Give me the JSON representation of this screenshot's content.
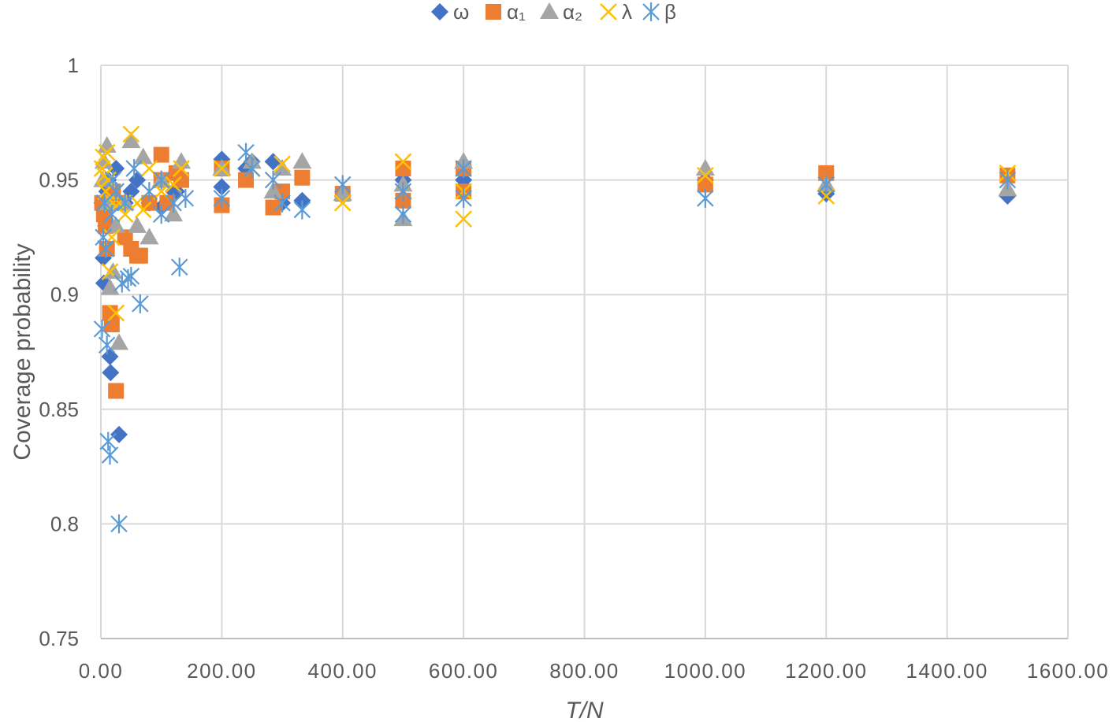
{
  "chart_data": {
    "type": "scatter",
    "title": "",
    "xlabel": "T/N",
    "ylabel": "Coverage probability",
    "xlim": [
      0,
      1600
    ],
    "ylim": [
      0.75,
      1.0
    ],
    "x_ticks": [
      "0.00",
      "200.00",
      "400.00",
      "600.00",
      "800.00",
      "1000.00",
      "1200.00",
      "1400.00",
      "1600.00"
    ],
    "y_ticks": [
      "0.75",
      "0.8",
      "0.85",
      "0.9",
      "0.95",
      "1"
    ],
    "grid": true,
    "legend_position": "top",
    "series": [
      {
        "name": "ω",
        "marker": "diamond",
        "color": "#4472C4",
        "points": [
          [
            2,
            0.94
          ],
          [
            4,
            0.916
          ],
          [
            5,
            0.905
          ],
          [
            8,
            0.93
          ],
          [
            10,
            0.945
          ],
          [
            12,
            0.95
          ],
          [
            15,
            0.873
          ],
          [
            16,
            0.866
          ],
          [
            20,
            0.94
          ],
          [
            25,
            0.955
          ],
          [
            30,
            0.839
          ],
          [
            40,
            0.94
          ],
          [
            50,
            0.945
          ],
          [
            60,
            0.95
          ],
          [
            80,
            0.94
          ],
          [
            100,
            0.938
          ],
          [
            120,
            0.945
          ],
          [
            125,
            0.945
          ],
          [
            200,
            0.947
          ],
          [
            200,
            0.959
          ],
          [
            240,
            0.955
          ],
          [
            250,
            0.958
          ],
          [
            285,
            0.958
          ],
          [
            300,
            0.94
          ],
          [
            333,
            0.941
          ],
          [
            400,
            0.943
          ],
          [
            500,
            0.95
          ],
          [
            500,
            0.942
          ],
          [
            600,
            0.95
          ],
          [
            1000,
            0.95
          ],
          [
            1200,
            0.944
          ],
          [
            1500,
            0.943
          ]
        ]
      },
      {
        "name": "α₁",
        "marker": "square",
        "color": "#ED7D31",
        "points": [
          [
            2,
            0.94
          ],
          [
            5,
            0.935
          ],
          [
            8,
            0.93
          ],
          [
            10,
            0.92
          ],
          [
            15,
            0.892
          ],
          [
            18,
            0.887
          ],
          [
            20,
            0.945
          ],
          [
            25,
            0.858
          ],
          [
            30,
            0.94
          ],
          [
            40,
            0.925
          ],
          [
            50,
            0.92
          ],
          [
            60,
            0.917
          ],
          [
            65,
            0.917
          ],
          [
            80,
            0.94
          ],
          [
            100,
            0.961
          ],
          [
            100,
            0.95
          ],
          [
            110,
            0.94
          ],
          [
            125,
            0.953
          ],
          [
            133,
            0.95
          ],
          [
            200,
            0.939
          ],
          [
            200,
            0.955
          ],
          [
            240,
            0.95
          ],
          [
            285,
            0.938
          ],
          [
            300,
            0.945
          ],
          [
            333,
            0.951
          ],
          [
            400,
            0.944
          ],
          [
            500,
            0.955
          ],
          [
            500,
            0.941
          ],
          [
            600,
            0.955
          ],
          [
            600,
            0.945
          ],
          [
            1000,
            0.948
          ],
          [
            1200,
            0.953
          ],
          [
            1500,
            0.952
          ]
        ]
      },
      {
        "name": "α₂",
        "marker": "triangle",
        "color": "#A5A5A5",
        "points": [
          [
            3,
            0.95
          ],
          [
            5,
            0.958
          ],
          [
            10,
            0.965
          ],
          [
            12,
            0.94
          ],
          [
            15,
            0.903
          ],
          [
            20,
            0.91
          ],
          [
            25,
            0.93
          ],
          [
            30,
            0.879
          ],
          [
            40,
            0.94
          ],
          [
            50,
            0.967
          ],
          [
            60,
            0.93
          ],
          [
            70,
            0.96
          ],
          [
            80,
            0.925
          ],
          [
            100,
            0.95
          ],
          [
            120,
            0.935
          ],
          [
            133,
            0.958
          ],
          [
            200,
            0.955
          ],
          [
            250,
            0.958
          ],
          [
            285,
            0.945
          ],
          [
            300,
            0.955
          ],
          [
            333,
            0.958
          ],
          [
            400,
            0.944
          ],
          [
            500,
            0.948
          ],
          [
            500,
            0.933
          ],
          [
            600,
            0.958
          ],
          [
            1000,
            0.955
          ],
          [
            1200,
            0.948
          ],
          [
            1500,
            0.946
          ]
        ]
      },
      {
        "name": "λ",
        "marker": "x",
        "color": "#FFC000",
        "points": [
          [
            2,
            0.955
          ],
          [
            4,
            0.96
          ],
          [
            6,
            0.952
          ],
          [
            8,
            0.945
          ],
          [
            10,
            0.962
          ],
          [
            12,
            0.95
          ],
          [
            15,
            0.91
          ],
          [
            18,
            0.925
          ],
          [
            20,
            0.94
          ],
          [
            25,
            0.892
          ],
          [
            30,
            0.94
          ],
          [
            40,
            0.935
          ],
          [
            50,
            0.97
          ],
          [
            60,
            0.94
          ],
          [
            70,
            0.937
          ],
          [
            80,
            0.955
          ],
          [
            100,
            0.945
          ],
          [
            120,
            0.948
          ],
          [
            133,
            0.955
          ],
          [
            200,
            0.955
          ],
          [
            250,
            0.955
          ],
          [
            300,
            0.957
          ],
          [
            400,
            0.94
          ],
          [
            500,
            0.958
          ],
          [
            600,
            0.933
          ],
          [
            600,
            0.945
          ],
          [
            1000,
            0.952
          ],
          [
            1200,
            0.943
          ],
          [
            1500,
            0.953
          ]
        ]
      },
      {
        "name": "β",
        "marker": "asterisk",
        "color": "#5B9BD5",
        "points": [
          [
            2,
            0.885
          ],
          [
            4,
            0.925
          ],
          [
            6,
            0.94
          ],
          [
            8,
            0.92
          ],
          [
            10,
            0.878
          ],
          [
            12,
            0.836
          ],
          [
            15,
            0.83
          ],
          [
            18,
            0.935
          ],
          [
            20,
            0.95
          ],
          [
            25,
            0.945
          ],
          [
            30,
            0.8
          ],
          [
            35,
            0.905
          ],
          [
            40,
            0.94
          ],
          [
            45,
            0.907
          ],
          [
            50,
            0.908
          ],
          [
            55,
            0.955
          ],
          [
            65,
            0.896
          ],
          [
            80,
            0.945
          ],
          [
            100,
            0.935
          ],
          [
            100,
            0.95
          ],
          [
            120,
            0.94
          ],
          [
            130,
            0.912
          ],
          [
            140,
            0.942
          ],
          [
            200,
            0.942
          ],
          [
            240,
            0.962
          ],
          [
            250,
            0.955
          ],
          [
            285,
            0.95
          ],
          [
            300,
            0.94
          ],
          [
            333,
            0.937
          ],
          [
            400,
            0.948
          ],
          [
            500,
            0.935
          ],
          [
            500,
            0.945
          ],
          [
            600,
            0.942
          ],
          [
            600,
            0.955
          ],
          [
            1000,
            0.942
          ],
          [
            1200,
            0.948
          ],
          [
            1500,
            0.95
          ]
        ]
      }
    ]
  }
}
